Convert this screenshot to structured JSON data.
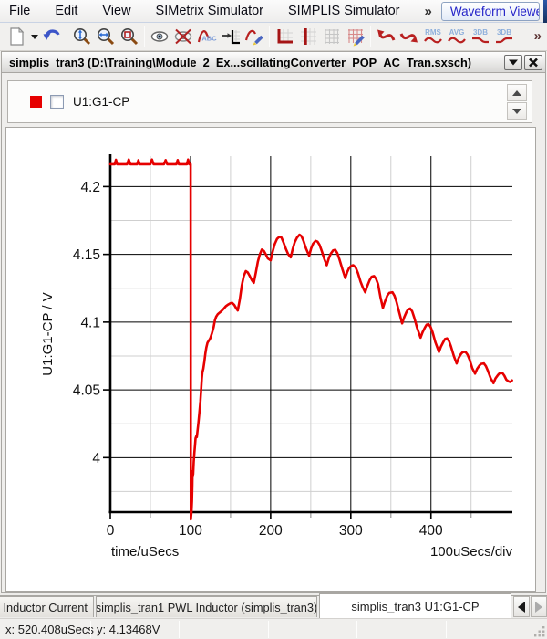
{
  "menu": {
    "items": [
      "File",
      "Edit",
      "View",
      "SIMetrix Simulator",
      "SIMPLIS Simulator"
    ],
    "overflow": "»",
    "viewer_combo": "Waveform Viewer"
  },
  "toolbar": {
    "overflow": "»",
    "buttons": [
      "new-graph",
      "new-graph-menu",
      "undo",
      "zoom-fit-y",
      "zoom-fit-x",
      "zoom-box",
      "show-curve",
      "hide-curve",
      "label-curve",
      "move-curve-axis",
      "edit-curve",
      "new-axes",
      "new-grid",
      "show-grid",
      "edit-grid",
      "curve-back",
      "curve-forward",
      "rms",
      "avg",
      "db-lowpass",
      "db-highpass"
    ],
    "labels": {
      "rms": "RMS",
      "avg": "AVG",
      "db1": "3DB",
      "db2": "3DB"
    }
  },
  "window": {
    "title": "simplis_tran3 (D:\\Training\\Module_2_Ex...scillatingConverter_POP_AC_Tran.sxsch)",
    "buttons": [
      "collapse-icon",
      "close-icon"
    ]
  },
  "legend": {
    "items": [
      {
        "label": "U1:G1-CP",
        "color": "#e60000",
        "checked": false
      }
    ]
  },
  "chart_data": {
    "type": "line",
    "title": "",
    "xlabel": "time/uSecs",
    "x_div_label": "100uSecs/div",
    "ylabel": "U1:G1-CP / V",
    "xlim": [
      0,
      501.5
    ],
    "ylim": [
      3.9598,
      4.2225
    ],
    "x_major_ticks": [
      0,
      100,
      200,
      300,
      400
    ],
    "x_minor_ticks": [
      50,
      150,
      250,
      350,
      450
    ],
    "y_major_ticks": [
      4.2,
      4.15,
      4.1,
      4.05,
      4
    ],
    "y_minor_ticks": [
      4.175,
      4.125,
      4.075,
      4.025,
      3.975
    ],
    "grid": true,
    "legend_position": "top",
    "series": [
      {
        "name": "U1:G1-CP",
        "color": "#e60000",
        "points": [
          [
            0,
            4.2165
          ],
          [
            5.5,
            4.2165
          ],
          [
            7,
            4.2198
          ],
          [
            8.5,
            4.2165
          ],
          [
            21,
            4.2165
          ],
          [
            23,
            4.22
          ],
          [
            25,
            4.2165
          ],
          [
            33.5,
            4.2165
          ],
          [
            35,
            4.2195
          ],
          [
            36.5,
            4.2165
          ],
          [
            50,
            4.2165
          ],
          [
            52,
            4.22
          ],
          [
            54,
            4.2165
          ],
          [
            67,
            4.2165
          ],
          [
            69,
            4.2196
          ],
          [
            71,
            4.2165
          ],
          [
            82.5,
            4.2165
          ],
          [
            84,
            4.2196
          ],
          [
            85.5,
            4.2165
          ],
          [
            95.5,
            4.2165
          ],
          [
            97,
            4.22
          ],
          [
            98.5,
            4.2165
          ],
          [
            100.2,
            4.2165
          ],
          [
            100.45,
            3.9545
          ],
          [
            101.2,
            3.9595
          ],
          [
            101.9,
            3.968
          ],
          [
            102.3,
            3.98
          ],
          [
            102.6,
            3.99
          ],
          [
            102.9,
            3.9868
          ],
          [
            103.4,
            3.9878
          ],
          [
            104,
            3.997
          ],
          [
            104.8,
            4.0035
          ],
          [
            105.6,
            4.009
          ],
          [
            106.3,
            4.0142
          ],
          [
            107.2,
            4.0158
          ],
          [
            107.9,
            4.0152
          ],
          [
            108.7,
            4.0195
          ],
          [
            109.8,
            4.0255
          ],
          [
            111,
            4.0325
          ],
          [
            112.3,
            4.0415
          ],
          [
            113.4,
            4.051
          ],
          [
            114.2,
            4.0585
          ],
          [
            114.9,
            4.0628
          ],
          [
            116,
            4.0655
          ],
          [
            117.2,
            4.0705
          ],
          [
            118.6,
            4.077
          ],
          [
            119.8,
            4.0812
          ],
          [
            121.2,
            4.0848
          ],
          [
            123,
            4.0865
          ],
          [
            124.8,
            4.0882
          ],
          [
            126.8,
            4.0918
          ],
          [
            128.8,
            4.0962
          ],
          [
            130.6,
            4.1015
          ],
          [
            132,
            4.104
          ],
          [
            134,
            4.1058
          ],
          [
            136,
            4.1068
          ],
          [
            138,
            4.1078
          ],
          [
            141,
            4.1096
          ],
          [
            144,
            4.1116
          ],
          [
            147,
            4.113
          ],
          [
            150,
            4.114
          ],
          [
            152,
            4.1142
          ],
          [
            154.5,
            4.1128
          ],
          [
            157,
            4.1102
          ],
          [
            159,
            4.1086
          ],
          [
            161.5,
            4.1165
          ],
          [
            164,
            4.127
          ],
          [
            166.5,
            4.134
          ],
          [
            169,
            4.1376
          ],
          [
            171.5,
            4.1366
          ],
          [
            174,
            4.134
          ],
          [
            176.5,
            4.131
          ],
          [
            179,
            4.129
          ],
          [
            181.5,
            4.1365
          ],
          [
            184,
            4.1445
          ],
          [
            186.5,
            4.15
          ],
          [
            189,
            4.1535
          ],
          [
            191.5,
            4.1526
          ],
          [
            194,
            4.15
          ],
          [
            196.5,
            4.147
          ],
          [
            200,
            4.1456
          ],
          [
            202.5,
            4.152
          ],
          [
            205,
            4.1575
          ],
          [
            208,
            4.1615
          ],
          [
            211,
            4.163
          ],
          [
            213.5,
            4.1624
          ],
          [
            216,
            4.159
          ],
          [
            219,
            4.154
          ],
          [
            222,
            4.15
          ],
          [
            225,
            4.1478
          ],
          [
            227.5,
            4.154
          ],
          [
            230,
            4.159
          ],
          [
            233,
            4.1625
          ],
          [
            236,
            4.1645
          ],
          [
            238.5,
            4.1634
          ],
          [
            241,
            4.16
          ],
          [
            244,
            4.1545
          ],
          [
            248,
            4.149
          ],
          [
            250.5,
            4.1545
          ],
          [
            253,
            4.158
          ],
          [
            256,
            4.16
          ],
          [
            258.5,
            4.1594
          ],
          [
            261,
            4.157
          ],
          [
            264,
            4.152
          ],
          [
            267,
            4.1465
          ],
          [
            270,
            4.142
          ],
          [
            272.5,
            4.147
          ],
          [
            275,
            4.1505
          ],
          [
            278,
            4.153
          ],
          [
            280.5,
            4.1534
          ],
          [
            283,
            4.151
          ],
          [
            286,
            4.146
          ],
          [
            289.5,
            4.139
          ],
          [
            293,
            4.1326
          ],
          [
            295.5,
            4.137
          ],
          [
            298,
            4.14
          ],
          [
            300.5,
            4.1415
          ],
          [
            303,
            4.142
          ],
          [
            306,
            4.1404
          ],
          [
            309,
            4.136
          ],
          [
            312,
            4.13
          ],
          [
            315,
            4.1255
          ],
          [
            318,
            4.122
          ],
          [
            320.5,
            4.1265
          ],
          [
            323.5,
            4.131
          ],
          [
            326,
            4.1335
          ],
          [
            329,
            4.134
          ],
          [
            331.5,
            4.132
          ],
          [
            334,
            4.128
          ],
          [
            337,
            4.1185
          ],
          [
            340,
            4.1105
          ],
          [
            342.5,
            4.115
          ],
          [
            345.5,
            4.1195
          ],
          [
            348,
            4.1215
          ],
          [
            352,
            4.122
          ],
          [
            354.5,
            4.1195
          ],
          [
            357,
            4.115
          ],
          [
            360.5,
            4.107
          ],
          [
            364,
            4.099
          ],
          [
            366.5,
            4.1035
          ],
          [
            369.5,
            4.1075
          ],
          [
            371.5,
            4.1095
          ],
          [
            374,
            4.11
          ],
          [
            376.5,
            4.108
          ],
          [
            379,
            4.1035
          ],
          [
            382.5,
            4.096
          ],
          [
            387,
            4.0885
          ],
          [
            389.5,
            4.0925
          ],
          [
            392.5,
            4.096
          ],
          [
            394.5,
            4.098
          ],
          [
            397,
            4.0985
          ],
          [
            399.5,
            4.0965
          ],
          [
            402,
            4.0925
          ],
          [
            405.5,
            4.085
          ],
          [
            410,
            4.078
          ],
          [
            412.5,
            4.082
          ],
          [
            415.5,
            4.0855
          ],
          [
            417.5,
            4.0875
          ],
          [
            420,
            4.088
          ],
          [
            422.5,
            4.086
          ],
          [
            425,
            4.082
          ],
          [
            428.5,
            4.075
          ],
          [
            432,
            4.0695
          ],
          [
            434.5,
            4.0735
          ],
          [
            437.5,
            4.0765
          ],
          [
            439.5,
            4.0778
          ],
          [
            443,
            4.078
          ],
          [
            445.5,
            4.076
          ],
          [
            448,
            4.0725
          ],
          [
            451.5,
            4.066
          ],
          [
            455,
            4.062
          ],
          [
            457.5,
            4.0655
          ],
          [
            460.5,
            4.068
          ],
          [
            462.5,
            4.0692
          ],
          [
            466,
            4.0695
          ],
          [
            468.5,
            4.0675
          ],
          [
            471,
            4.064
          ],
          [
            474.5,
            4.0585
          ],
          [
            478,
            4.055
          ],
          [
            480.5,
            4.0585
          ],
          [
            483.5,
            4.061
          ],
          [
            485.5,
            4.0622
          ],
          [
            489,
            4.0625
          ],
          [
            491.5,
            4.0605
          ],
          [
            494,
            4.0575
          ],
          [
            497,
            4.0562
          ],
          [
            499,
            4.0558
          ],
          [
            501,
            4.057
          ]
        ]
      }
    ]
  },
  "tabs": [
    {
      "label": "l Inductor Current",
      "active": false
    },
    {
      "label": "simplis_tran1 PWL Inductor (simplis_tran3)",
      "active": false
    },
    {
      "label": "simplis_tran3 U1:G1-CP",
      "active": true
    }
  ],
  "status": {
    "x": "x: 520.408uSecs",
    "y": "y: 4.13468V"
  }
}
